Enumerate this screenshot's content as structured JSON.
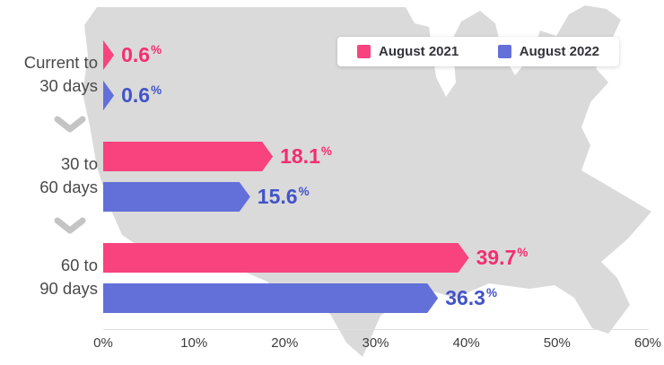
{
  "legend": {
    "items": [
      {
        "label": "August 2021",
        "color": "#F9437E"
      },
      {
        "label": "August 2022",
        "color": "#6370D9"
      }
    ]
  },
  "chart_data": {
    "type": "bar",
    "orientation": "horizontal",
    "title": "",
    "categories": [
      "Current to 30 days",
      "30 to 60 days",
      "60 to 90 days"
    ],
    "category_lines": [
      [
        "Current to",
        "30 days"
      ],
      [
        "30 to",
        "60 days"
      ],
      [
        "60 to",
        "90 days"
      ]
    ],
    "series": [
      {
        "name": "August 2021",
        "color": "#F9437E",
        "label_color": "#F42D71",
        "values": [
          0.6,
          18.1,
          39.7
        ]
      },
      {
        "name": "August 2022",
        "color": "#6370D9",
        "label_color": "#4254C9",
        "values": [
          0.6,
          15.6,
          36.3
        ]
      }
    ],
    "value_suffix": "%",
    "xlim": [
      0,
      60
    ],
    "x_ticks": [
      {
        "value": 0,
        "label": "0%"
      },
      {
        "value": 10,
        "label": "10%"
      },
      {
        "value": 20,
        "label": "20%"
      },
      {
        "value": 30,
        "label": "30%"
      },
      {
        "value": 40,
        "label": "40%"
      },
      {
        "value": 50,
        "label": "50%"
      },
      {
        "value": 60,
        "label": "60%"
      }
    ],
    "legend_position": "top",
    "grid": false,
    "background": "usa-map-silhouette"
  },
  "colors": {
    "map_fill": "#DADADA",
    "chevron": "#C4C4C4",
    "category_text": "#4A4A4A",
    "tick_text": "#3D3D3D",
    "legend_text": "#33333B",
    "page_background": "#FFFFFF"
  }
}
